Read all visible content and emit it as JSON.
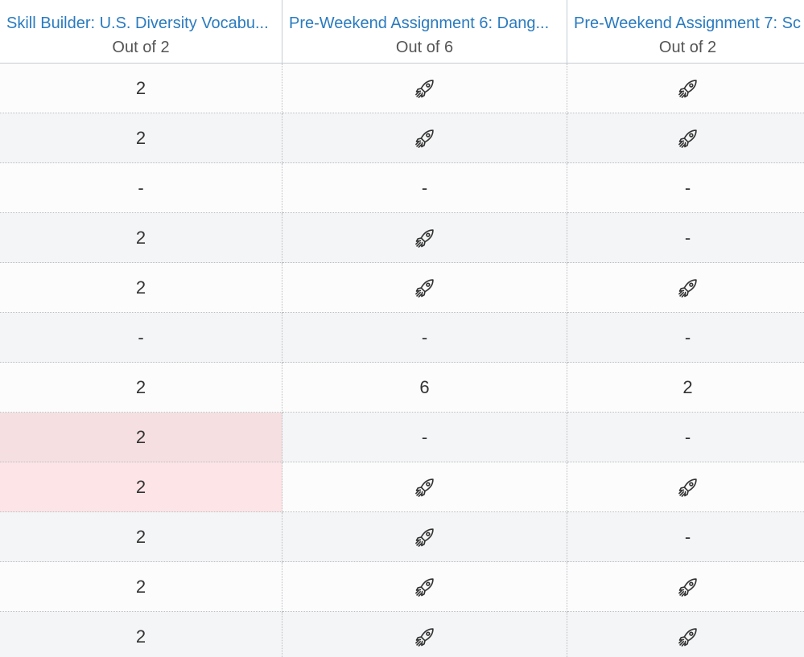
{
  "columns": [
    {
      "title": "Skill Builder: U.S. Diversity Vocabu...",
      "subtitle": "Out of 2"
    },
    {
      "title": "Pre-Weekend Assignment 6: Dang...",
      "subtitle": "Out of 6"
    },
    {
      "title": "Pre-Weekend Assignment 7: Sc",
      "subtitle": "Out of 2"
    }
  ],
  "rows": [
    [
      2,
      null,
      null
    ],
    [
      2,
      null,
      null
    ],
    [
      "-",
      "-",
      "-"
    ],
    [
      2,
      null,
      "-"
    ],
    [
      2,
      null,
      null
    ],
    [
      "-",
      "-",
      "-"
    ],
    [
      2,
      6,
      2
    ],
    [
      2,
      "-",
      "-"
    ],
    [
      2,
      null,
      null
    ],
    [
      2,
      null,
      "-"
    ],
    [
      2,
      null,
      null
    ],
    [
      2,
      null,
      null
    ]
  ]
}
